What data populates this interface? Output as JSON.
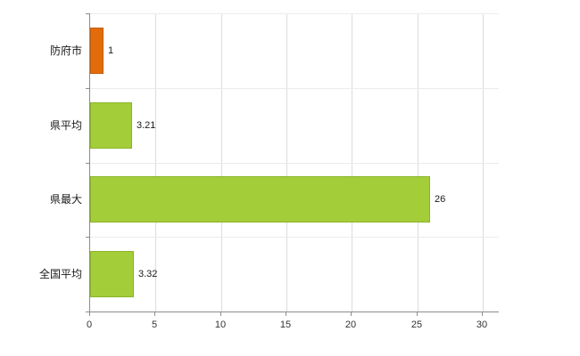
{
  "chart_data": {
    "type": "bar",
    "orientation": "horizontal",
    "title": "",
    "xlabel": "",
    "ylabel": "",
    "categories": [
      "防府市",
      "県平均",
      "県最大",
      "全国平均"
    ],
    "values": [
      1,
      3.21,
      26,
      3.32
    ],
    "value_labels": [
      "1",
      "3.21",
      "26",
      "3.32"
    ],
    "bar_colors": [
      "#e36c0a",
      "#a4ce39",
      "#a4ce39",
      "#a4ce39"
    ],
    "bar_border_colors": [
      "#c25c07",
      "#8cb32a",
      "#8cb32a",
      "#8cb32a"
    ],
    "xlim": [
      0,
      30
    ],
    "x_ticks": [
      "0",
      "5",
      "10",
      "15",
      "20",
      "25",
      "30"
    ],
    "grid": true,
    "legend": "none",
    "background_color": "#ffffff",
    "axis_color": "#8c8c8c",
    "gridline_color": "#dcdcdc"
  }
}
